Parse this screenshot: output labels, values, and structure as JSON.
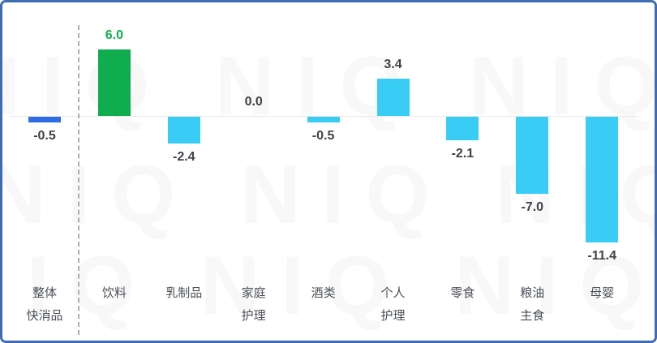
{
  "frame": {
    "border_color": "#3d6cb2",
    "background_color": "#ffffff"
  },
  "watermark": {
    "text": "NIQ",
    "color": "rgba(130,130,130,0.06)"
  },
  "colors": {
    "overall_bar_blue": "#2e6be5",
    "positive_green": "#10ad4e",
    "category_cyan": "#39cdf5",
    "value_label_dark": "#3e4348",
    "category_label_gray": "#4b5056",
    "zero_axis_gray": "#e8e8e8",
    "separator_dash_gray": "#aeaeae"
  },
  "chart_data": {
    "type": "bar",
    "title": "",
    "xlabel": "",
    "ylabel": "",
    "grid": false,
    "legend": false,
    "ylim": [
      -12,
      7
    ],
    "baseline": 0,
    "categories": [
      "整体快消品",
      "饮料",
      "乳制品",
      "家庭护理",
      "酒类",
      "个人护理",
      "零食",
      "粮油主食",
      "母婴"
    ],
    "category_lines": [
      [
        "整体",
        "快消品"
      ],
      [
        "饮料"
      ],
      [
        "乳制品"
      ],
      [
        "家庭",
        "护理"
      ],
      [
        "酒类"
      ],
      [
        "个人",
        "护理"
      ],
      [
        "零食"
      ],
      [
        "粮油",
        "主食"
      ],
      [
        "母婴"
      ]
    ],
    "values": [
      -0.5,
      6.0,
      -2.4,
      0.0,
      -0.5,
      3.4,
      -2.1,
      -7.0,
      -11.4
    ],
    "value_labels": [
      "-0.5",
      "6.0",
      "-2.4",
      "0.0",
      "-0.5",
      "3.4",
      "-2.1",
      "-7.0",
      "-11.4"
    ],
    "bar_colors": [
      "#2e6be5",
      "#10ad4e",
      "#39cdf5",
      "#39cdf5",
      "#39cdf5",
      "#39cdf5",
      "#39cdf5",
      "#39cdf5",
      "#39cdf5"
    ],
    "value_label_colors": [
      "#3e4348",
      "#10ad4e",
      "#3e4348",
      "#3e4348",
      "#3e4348",
      "#3e4348",
      "#3e4348",
      "#3e4348",
      "#3e4348"
    ],
    "separator_after_index": 0
  }
}
